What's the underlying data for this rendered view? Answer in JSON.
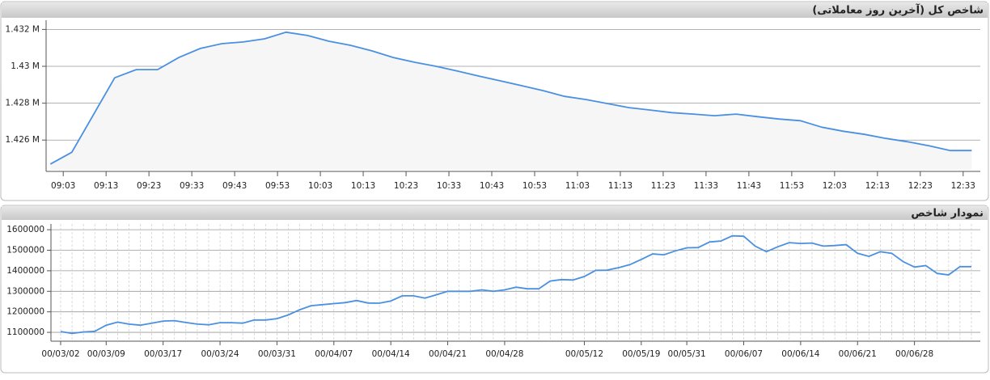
{
  "chart_data": [
    {
      "type": "line",
      "title": "شاخص کل (آخرین روز معاملاتی)",
      "x": [
        "09:00",
        "09:05",
        "09:15",
        "09:20",
        "09:25",
        "09:30",
        "09:35",
        "09:40",
        "09:45",
        "09:50",
        "09:55",
        "10:00",
        "10:05",
        "10:10",
        "10:15",
        "10:20",
        "10:25",
        "10:30",
        "10:35",
        "10:40",
        "10:45",
        "10:50",
        "10:55",
        "11:00",
        "11:05",
        "11:10",
        "11:15",
        "11:20",
        "11:25",
        "11:30",
        "11:35",
        "11:40",
        "11:45",
        "11:50",
        "11:55",
        "12:00",
        "12:05",
        "12:10",
        "12:15",
        "12:20",
        "12:25",
        "12:30",
        "12:35"
      ],
      "values": [
        1424700,
        1425340,
        1429380,
        1429820,
        1429820,
        1430480,
        1430970,
        1431230,
        1431320,
        1431490,
        1431850,
        1431670,
        1431360,
        1431140,
        1430840,
        1430480,
        1430220,
        1430000,
        1429740,
        1429470,
        1429210,
        1428950,
        1428680,
        1428370,
        1428200,
        1427980,
        1427760,
        1427630,
        1427490,
        1427410,
        1427320,
        1427410,
        1427270,
        1427140,
        1427050,
        1426700,
        1426480,
        1426310,
        1426090,
        1425910,
        1425690,
        1425430,
        1425430
      ],
      "color": "#4a90e2",
      "area_color": "#f6f6f6",
      "xlim": [
        "08:59",
        "12:37"
      ],
      "xticks": [
        "09:03",
        "09:13",
        "09:23",
        "09:33",
        "09:43",
        "09:53",
        "10:03",
        "10:13",
        "10:23",
        "10:33",
        "10:43",
        "10:53",
        "11:03",
        "11:13",
        "11:23",
        "11:33",
        "11:43",
        "11:53",
        "12:03",
        "12:13",
        "12:23",
        "12:33"
      ],
      "ylim": [
        1424300,
        1432500
      ],
      "yticks": [
        {
          "value": 1426000,
          "label": "1.426 M"
        },
        {
          "value": 1428000,
          "label": "1.428 M"
        },
        {
          "value": 1430000,
          "label": "1.43 M"
        },
        {
          "value": 1432000,
          "label": "1.432 M"
        }
      ],
      "grid": true
    },
    {
      "type": "line",
      "title": "نمودار شاخص",
      "categories": [
        "00/03/02",
        null,
        null,
        null,
        "00/03/09",
        null,
        null,
        null,
        null,
        "00/03/17",
        null,
        null,
        null,
        null,
        "00/03/24",
        null,
        null,
        null,
        null,
        "00/03/31",
        null,
        null,
        null,
        null,
        "00/04/07",
        null,
        null,
        null,
        null,
        "00/04/14",
        null,
        null,
        null,
        null,
        "00/04/21",
        null,
        null,
        null,
        null,
        "00/04/28",
        null,
        null,
        null,
        null,
        null,
        null,
        "00/05/12",
        null,
        null,
        null,
        null,
        "00/05/19",
        null,
        null,
        null,
        "00/05/31",
        null,
        null,
        null,
        null,
        "00/06/07",
        null,
        null,
        null,
        null,
        "00/06/14",
        null,
        null,
        null,
        null,
        "00/06/21",
        null,
        null,
        null,
        null,
        "00/06/28",
        null,
        null,
        null,
        null,
        null
      ],
      "values": [
        1104000,
        1095000,
        1102000,
        1105000,
        1135000,
        1150000,
        1140000,
        1135000,
        1145000,
        1155000,
        1157000,
        1148000,
        1140000,
        1137000,
        1147000,
        1147000,
        1145000,
        1160000,
        1160000,
        1167000,
        1185000,
        1210000,
        1230000,
        1235000,
        1240000,
        1245000,
        1255000,
        1243000,
        1242000,
        1253000,
        1278000,
        1278000,
        1267000,
        1283000,
        1300000,
        1300000,
        1300000,
        1307000,
        1300000,
        1307000,
        1320000,
        1312000,
        1312000,
        1350000,
        1357000,
        1355000,
        1372000,
        1402000,
        1403000,
        1415000,
        1430000,
        1455000,
        1482000,
        1478000,
        1497000,
        1512000,
        1513000,
        1540000,
        1545000,
        1570000,
        1568000,
        1520000,
        1493000,
        1517000,
        1537000,
        1533000,
        1535000,
        1520000,
        1523000,
        1527000,
        1485000,
        1470000,
        1493000,
        1485000,
        1445000,
        1418000,
        1425000,
        1387000,
        1380000,
        1420000,
        1420000
      ],
      "color": "#4a90e2",
      "ylim": [
        1057000,
        1628000
      ],
      "yticks": [
        1100000,
        1200000,
        1300000,
        1400000,
        1500000,
        1600000
      ],
      "grid": true
    }
  ]
}
